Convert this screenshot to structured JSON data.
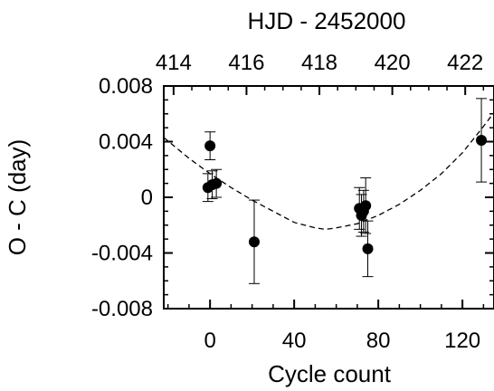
{
  "chart_data": {
    "type": "scatter",
    "xlabel": "Cycle count",
    "ylabel": "O - C (day)",
    "top_xlabel": "HJD - 2452000",
    "xlim": [
      -22,
      135
    ],
    "ylim": [
      -0.008,
      0.008
    ],
    "x_ticks": [
      0,
      40,
      80,
      120
    ],
    "x_tick_labels": [
      "0",
      "40",
      "80",
      "120"
    ],
    "y_ticks": [
      0.008,
      0.004,
      0,
      -0.004,
      -0.008
    ],
    "y_tick_labels": [
      "0.008",
      "0.004",
      "0",
      "-0.004",
      "-0.008"
    ],
    "top_ticks": [
      414,
      416,
      418,
      420,
      422
    ],
    "top_tick_labels": [
      "414",
      "416",
      "418",
      "420",
      "422"
    ],
    "top_axis_map": {
      "hjd_at_cycle0": 415.0,
      "hjd_per_cycle": 0.0577
    },
    "grid": false,
    "series": [
      {
        "points": [
          {
            "x": -1,
            "y": 0.0007,
            "err": 0.001
          },
          {
            "x": 0,
            "y": 0.0037,
            "err": 0.001
          },
          {
            "x": 1,
            "y": 0.0009,
            "err": 0.001
          },
          {
            "x": 3,
            "y": 0.001,
            "err": 0.001
          },
          {
            "x": 21,
            "y": -0.0032,
            "err": 0.003
          },
          {
            "x": 71,
            "y": -0.0008,
            "err": 0.0015
          },
          {
            "x": 72,
            "y": -0.0013,
            "err": 0.0015
          },
          {
            "x": 73,
            "y": -0.001,
            "err": 0.0015
          },
          {
            "x": 74,
            "y": -0.0006,
            "err": 0.002
          },
          {
            "x": 75,
            "y": -0.0037,
            "err": 0.002
          },
          {
            "x": 129,
            "y": 0.0041,
            "err": 0.003
          }
        ]
      }
    ],
    "fit": {
      "style": "dashed",
      "form": "quadratic",
      "x": [
        -22,
        -10,
        0,
        10,
        20,
        30,
        40,
        50,
        55,
        60,
        70,
        80,
        90,
        100,
        110,
        120,
        130,
        135
      ],
      "y": [
        0.0043,
        0.0028,
        0.0017,
        0.0007,
        -0.0002,
        -0.001,
        -0.0018,
        -0.0022,
        -0.0023,
        -0.0022,
        -0.0019,
        -0.0013,
        -0.0005,
        0.0005,
        0.0017,
        0.0032,
        0.0051,
        0.0061
      ]
    }
  }
}
